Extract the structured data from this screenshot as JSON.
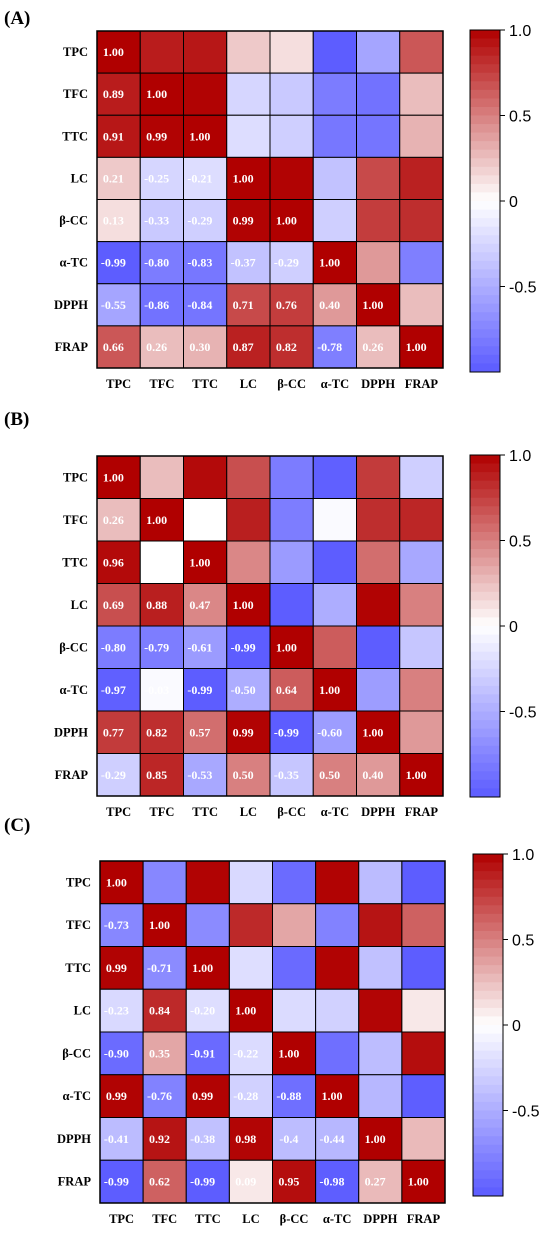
{
  "colors": {
    "negative": "#5b5bff",
    "neutral": "#ffffff",
    "positive": "#b00000",
    "grid": "#000000"
  },
  "chart_data": [
    {
      "type": "heatmap",
      "panel": "(A)",
      "variables": [
        "TPC",
        "TFC",
        "TTC",
        "LC",
        "β-CC",
        "α-TC",
        "DPPH",
        "FRAP"
      ],
      "colorbar": {
        "range": [
          -1,
          1
        ],
        "ticks": [
          1.0,
          0.5,
          0,
          -0.5
        ],
        "tick_labels": [
          "1.0",
          "0.5",
          "0",
          "-0.5"
        ]
      },
      "lower_triangle": [
        [
          1.0
        ],
        [
          0.89,
          1.0
        ],
        [
          0.91,
          0.99,
          1.0
        ],
        [
          0.21,
          -0.25,
          -0.21,
          1.0
        ],
        [
          0.13,
          -0.33,
          -0.29,
          0.99,
          1.0
        ],
        [
          -0.99,
          -0.8,
          -0.83,
          -0.37,
          -0.29,
          1.0
        ],
        [
          -0.55,
          -0.86,
          -0.84,
          0.71,
          0.76,
          0.4,
          1.0
        ],
        [
          0.66,
          0.26,
          0.3,
          0.87,
          0.82,
          -0.78,
          0.26,
          1.0
        ]
      ],
      "labels": [
        [
          "1.00"
        ],
        [
          "0.89",
          "1.00"
        ],
        [
          "0.91",
          "0.99",
          "1.00"
        ],
        [
          "0.21",
          "-0.25",
          "-0.21",
          "1.00"
        ],
        [
          "0.13",
          "-0.33",
          "-0.29",
          "0.99",
          "1.00"
        ],
        [
          "-0.99",
          "-0.80",
          "-0.83",
          "-0.37",
          "-0.29",
          "1.00"
        ],
        [
          "-0.55",
          "-0.86",
          "-0.84",
          "0.71",
          "0.76",
          "0.40",
          "1.00"
        ],
        [
          "0.66",
          "0.26",
          "0.30",
          "0.87",
          "0.82",
          "-0.78",
          "0.26",
          "1.00"
        ]
      ]
    },
    {
      "type": "heatmap",
      "panel": "(B)",
      "variables": [
        "TPC",
        "TFC",
        "TTC",
        "LC",
        "β-CC",
        "α-TC",
        "DPPH",
        "FRAP"
      ],
      "colorbar": {
        "range": [
          -1,
          1
        ],
        "ticks": [
          1.0,
          0.5,
          0,
          -0.5
        ],
        "tick_labels": [
          "1.0",
          "0.5",
          "0",
          "-0.5"
        ]
      },
      "lower_triangle": [
        [
          1.0
        ],
        [
          0.26,
          1.0
        ],
        [
          0.96,
          0.0,
          1.0
        ],
        [
          0.69,
          0.88,
          0.47,
          1.0
        ],
        [
          -0.8,
          -0.79,
          -0.61,
          -0.99,
          1.0
        ],
        [
          -0.97,
          -0.03,
          -0.99,
          -0.5,
          0.64,
          1.0
        ],
        [
          0.77,
          0.82,
          0.57,
          0.99,
          -0.99,
          -0.6,
          1.0
        ],
        [
          -0.29,
          0.85,
          -0.53,
          0.5,
          -0.35,
          0.5,
          0.4,
          1.0
        ]
      ],
      "labels": [
        [
          "1.00"
        ],
        [
          "0.26",
          "1.00"
        ],
        [
          "0.96",
          "0.00",
          "1.00"
        ],
        [
          "0.69",
          "0.88",
          "0.47",
          "1.00"
        ],
        [
          "-0.80",
          "-0.79",
          "-0.61",
          "-0.99",
          "1.00"
        ],
        [
          "-0.97",
          "-0.03",
          "-0.99",
          "-0.50",
          "0.64",
          "1.00"
        ],
        [
          "0.77",
          "0.82",
          "0.57",
          "0.99",
          "-0.99",
          "-0.60",
          "1.00"
        ],
        [
          "-0.29",
          "0.85",
          "-0.53",
          "0.50",
          "-0.35",
          "0.50",
          "0.40",
          "1.00"
        ]
      ]
    },
    {
      "type": "heatmap",
      "panel": "(C)",
      "variables": [
        "TPC",
        "TFC",
        "TTC",
        "LC",
        "β-CC",
        "α-TC",
        "DPPH",
        "FRAP"
      ],
      "colorbar": {
        "range": [
          -1,
          1
        ],
        "ticks": [
          1.0,
          0.5,
          0,
          -0.5
        ],
        "tick_labels": [
          "1.0",
          "0.5",
          "0",
          "-0.5"
        ]
      },
      "lower_triangle": [
        [
          1.0
        ],
        [
          -0.73,
          1.0
        ],
        [
          0.99,
          -0.71,
          1.0
        ],
        [
          -0.23,
          0.84,
          -0.2,
          1.0
        ],
        [
          -0.9,
          0.35,
          -0.91,
          -0.22,
          1.0
        ],
        [
          0.99,
          -0.76,
          0.99,
          -0.28,
          -0.88,
          1.0
        ],
        [
          -0.41,
          0.92,
          -0.38,
          0.98,
          -0.4,
          -0.44,
          1.0
        ],
        [
          -0.99,
          0.62,
          -0.99,
          0.09,
          0.95,
          -0.98,
          0.27,
          1.0
        ]
      ],
      "labels": [
        [
          "1.00"
        ],
        [
          "-0.73",
          "1.00"
        ],
        [
          "0.99",
          "-0.71",
          "1.00"
        ],
        [
          "-0.23",
          "0.84",
          "-0.20",
          "1.00"
        ],
        [
          "-0.90",
          "0.35",
          "-0.91",
          "-0.22",
          "1.00"
        ],
        [
          "0.99",
          "-0.76",
          "0.99",
          "-0.28",
          "-0.88",
          "1.00"
        ],
        [
          "-0.41",
          "0.92",
          "-0.38",
          "0.98",
          "-0.4",
          "-0.44",
          "1.00"
        ],
        [
          "-0.99",
          "0.62",
          "-0.99",
          "0.09",
          "0.95",
          "-0.98",
          "0.27",
          "1.00"
        ]
      ]
    }
  ]
}
